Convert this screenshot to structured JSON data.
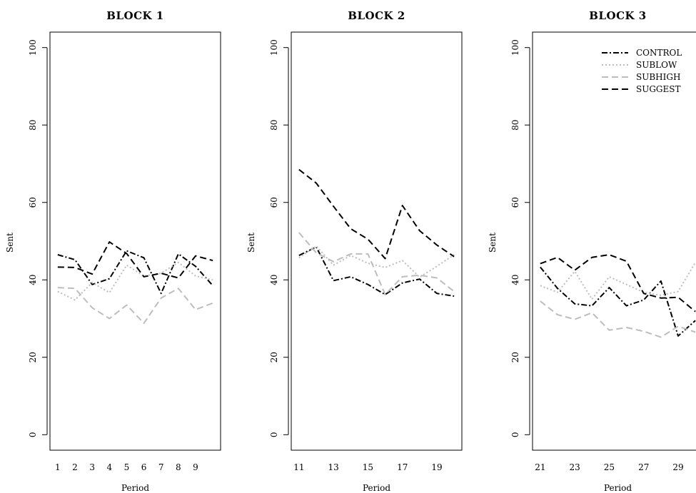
{
  "chart_data": [
    {
      "type": "line",
      "title": "BLOCK 1",
      "xlabel": "Period",
      "ylabel": "Sent",
      "x": [
        1,
        2,
        3,
        4,
        5,
        6,
        7,
        8,
        9,
        10
      ],
      "xticks": [
        1,
        2,
        3,
        4,
        5,
        6,
        7,
        8,
        9
      ],
      "xlim": [
        0.55,
        10.45
      ],
      "ylim": [
        -4,
        104
      ],
      "yticks": [
        0,
        20,
        40,
        60,
        80,
        100
      ],
      "grid": false,
      "series": [
        {
          "name": "CONTROL",
          "values": [
            46.5,
            45.2,
            38.8,
            40.3,
            47.5,
            45.7,
            36.5,
            46.7,
            43.5,
            38.5
          ]
        },
        {
          "name": "SUBLOW",
          "values": [
            37.0,
            34.8,
            39.3,
            36.7,
            43.8,
            41.0,
            41.7,
            44.5,
            41.0,
            40.0
          ]
        },
        {
          "name": "SUBHIGH",
          "values": [
            38.0,
            37.8,
            32.8,
            30.0,
            33.5,
            28.8,
            35.3,
            37.8,
            32.3,
            34.0
          ]
        },
        {
          "name": "SUGGEST",
          "values": [
            43.3,
            43.2,
            41.5,
            49.8,
            46.8,
            40.8,
            41.7,
            40.5,
            46.2,
            45.0
          ]
        }
      ]
    },
    {
      "type": "line",
      "title": "BLOCK 2",
      "xlabel": "Period",
      "ylabel": "Sent",
      "x": [
        11,
        12,
        13,
        14,
        15,
        16,
        17,
        18,
        19,
        20
      ],
      "xticks": [
        11,
        13,
        15,
        17,
        19
      ],
      "xlim": [
        10.55,
        20.45
      ],
      "ylim": [
        -4,
        104
      ],
      "yticks": [
        0,
        20,
        40,
        60,
        80,
        100
      ],
      "grid": false,
      "series": [
        {
          "name": "CONTROL",
          "values": [
            46.3,
            48.5,
            39.8,
            40.8,
            38.8,
            36.2,
            39.2,
            40.2,
            36.5,
            35.8
          ]
        },
        {
          "name": "SUBLOW",
          "values": [
            45.7,
            48.7,
            43.8,
            46.3,
            44.3,
            43.2,
            45.0,
            40.7,
            43.5,
            46.5
          ]
        },
        {
          "name": "SUBHIGH",
          "values": [
            52.2,
            47.0,
            44.7,
            46.7,
            46.7,
            36.2,
            40.8,
            41.2,
            40.5,
            37.0
          ]
        },
        {
          "name": "SUGGEST",
          "values": [
            68.5,
            65.0,
            59.0,
            53.2,
            50.5,
            45.5,
            59.2,
            52.7,
            49.0,
            46.0
          ]
        }
      ]
    },
    {
      "type": "line",
      "title": "BLOCK 3",
      "xlabel": "Period",
      "ylabel": "Sent",
      "x": [
        21,
        22,
        23,
        24,
        25,
        26,
        27,
        28,
        29,
        30
      ],
      "xticks": [
        21,
        23,
        25,
        27,
        29
      ],
      "xlim": [
        20.55,
        30.45
      ],
      "ylim": [
        -4,
        104
      ],
      "yticks": [
        0,
        20,
        40,
        60,
        80,
        100
      ],
      "grid": false,
      "legend": "top-right",
      "series": [
        {
          "name": "CONTROL",
          "values": [
            43.3,
            37.8,
            33.8,
            33.3,
            38.0,
            33.3,
            34.8,
            39.7,
            25.5,
            29.5
          ]
        },
        {
          "name": "SUBLOW",
          "values": [
            38.5,
            36.8,
            42.2,
            35.0,
            40.8,
            38.8,
            36.8,
            36.0,
            37.0,
            44.5
          ]
        },
        {
          "name": "SUBHIGH",
          "values": [
            34.5,
            31.0,
            29.8,
            31.5,
            27.0,
            27.7,
            26.7,
            25.2,
            28.0,
            26.5
          ]
        },
        {
          "name": "SUGGEST",
          "values": [
            44.2,
            45.8,
            42.5,
            45.8,
            46.5,
            44.8,
            36.5,
            35.3,
            35.5,
            31.8
          ]
        }
      ]
    }
  ],
  "series_styles": [
    {
      "name": "CONTROL",
      "color": "#000000",
      "dash": "8 3 2 3"
    },
    {
      "name": "SUBLOW",
      "color": "#bdbdbd",
      "dash": "2 3"
    },
    {
      "name": "SUBHIGH",
      "color": "#bdbdbd",
      "dash": "9 5"
    },
    {
      "name": "SUGGEST",
      "color": "#000000",
      "dash": "9 5"
    }
  ]
}
